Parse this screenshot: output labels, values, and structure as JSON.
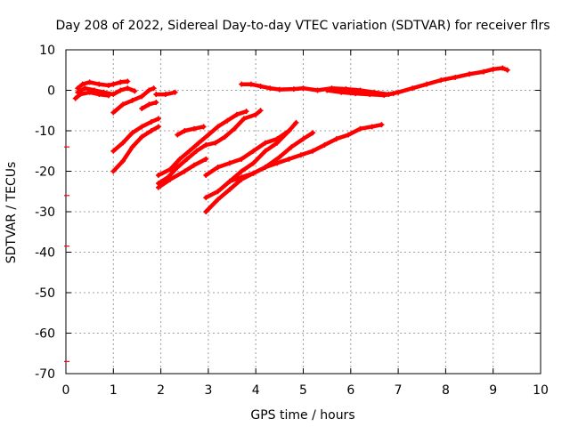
{
  "chart_data": {
    "type": "scatter",
    "title": "Day 208 of 2022, Sidereal Day-to-day VTEC variation (SDTVAR) for receiver flrs",
    "xlabel": "GPS time / hours",
    "ylabel": "SDTVAR / TECUs",
    "xlim": [
      0,
      10
    ],
    "ylim": [
      -70,
      10
    ],
    "x_ticks": [
      0,
      1,
      2,
      3,
      4,
      5,
      6,
      7,
      8,
      9,
      10
    ],
    "y_ticks": [
      10,
      0,
      -10,
      -20,
      -30,
      -40,
      -50,
      -60,
      -70
    ],
    "grid": true,
    "legend": "none",
    "series_color": "#ff0000",
    "axis_edge_marks_y": [
      -14,
      -26,
      -38.5,
      -67
    ],
    "series": [
      {
        "points": [
          [
            0.25,
            0.5
          ],
          [
            0.35,
            1.5
          ],
          [
            0.5,
            2
          ],
          [
            0.7,
            1.5
          ],
          [
            0.9,
            1.2
          ],
          [
            1.0,
            1.5
          ],
          [
            1.15,
            2
          ],
          [
            1.3,
            2.2
          ]
        ]
      },
      {
        "points": [
          [
            0.25,
            -0.5
          ],
          [
            0.4,
            0.5
          ],
          [
            0.6,
            0
          ],
          [
            0.8,
            -0.5
          ],
          [
            1.0,
            -1
          ],
          [
            1.15,
            0
          ],
          [
            1.3,
            0.5
          ],
          [
            1.45,
            -0.2
          ]
        ]
      },
      {
        "points": [
          [
            0.2,
            -2
          ],
          [
            0.3,
            -1
          ],
          [
            0.5,
            -0.5
          ],
          [
            0.7,
            -1
          ],
          [
            0.9,
            -1.3
          ]
        ]
      },
      {
        "points": [
          [
            1.0,
            -5.5
          ],
          [
            1.2,
            -3.5
          ],
          [
            1.4,
            -2.5
          ],
          [
            1.6,
            -1.5
          ],
          [
            1.75,
            0
          ],
          [
            1.85,
            0.5
          ]
        ]
      },
      {
        "points": [
          [
            1.6,
            -4.5
          ],
          [
            1.75,
            -3.5
          ],
          [
            1.9,
            -3
          ]
        ]
      },
      {
        "points": [
          [
            1.9,
            -1
          ],
          [
            2.1,
            -1
          ],
          [
            2.3,
            -0.5
          ]
        ]
      },
      {
        "points": [
          [
            1.0,
            -15
          ],
          [
            1.2,
            -13
          ],
          [
            1.4,
            -10.5
          ],
          [
            1.6,
            -9
          ],
          [
            1.8,
            -7.8
          ],
          [
            1.95,
            -7
          ]
        ]
      },
      {
        "points": [
          [
            1.0,
            -20
          ],
          [
            1.2,
            -17.5
          ],
          [
            1.4,
            -14
          ],
          [
            1.6,
            -11.5
          ],
          [
            1.8,
            -10
          ],
          [
            1.95,
            -9
          ]
        ]
      },
      {
        "points": [
          [
            2.35,
            -11
          ],
          [
            2.5,
            -10
          ],
          [
            2.7,
            -9.5
          ],
          [
            2.9,
            -9
          ]
        ]
      },
      {
        "points": [
          [
            1.95,
            -21
          ],
          [
            2.2,
            -19.5
          ],
          [
            2.4,
            -17
          ],
          [
            2.6,
            -15
          ],
          [
            2.8,
            -13
          ],
          [
            3.0,
            -11
          ],
          [
            3.2,
            -9
          ],
          [
            3.4,
            -7.5
          ],
          [
            3.6,
            -6
          ],
          [
            3.8,
            -5.2
          ]
        ]
      },
      {
        "points": [
          [
            1.95,
            -23
          ],
          [
            2.15,
            -21.5
          ],
          [
            2.35,
            -19
          ],
          [
            2.55,
            -17
          ],
          [
            2.75,
            -15
          ],
          [
            2.95,
            -13.5
          ],
          [
            3.15,
            -13
          ],
          [
            3.35,
            -11.5
          ],
          [
            3.55,
            -9.5
          ],
          [
            3.75,
            -7
          ],
          [
            4.0,
            -6
          ],
          [
            4.1,
            -5
          ]
        ]
      },
      {
        "points": [
          [
            1.95,
            -24
          ],
          [
            2.2,
            -22
          ],
          [
            2.5,
            -20
          ],
          [
            2.7,
            -18.5
          ],
          [
            2.95,
            -17
          ]
        ]
      },
      {
        "points": [
          [
            2.95,
            -26.5
          ],
          [
            3.2,
            -25
          ],
          [
            3.45,
            -22.5
          ],
          [
            3.7,
            -20
          ],
          [
            3.95,
            -18
          ],
          [
            4.2,
            -15
          ],
          [
            4.45,
            -13
          ],
          [
            4.7,
            -10
          ],
          [
            4.85,
            -8
          ]
        ]
      },
      {
        "points": [
          [
            2.95,
            -30
          ],
          [
            3.2,
            -27
          ],
          [
            3.45,
            -24.5
          ],
          [
            3.7,
            -22
          ],
          [
            3.95,
            -20.5
          ],
          [
            4.2,
            -19
          ],
          [
            4.5,
            -16.5
          ],
          [
            4.75,
            -14
          ],
          [
            5.0,
            -12
          ],
          [
            5.2,
            -10.5
          ]
        ]
      },
      {
        "points": [
          [
            2.95,
            -21
          ],
          [
            3.2,
            -19
          ],
          [
            3.45,
            -18
          ],
          [
            3.7,
            -17
          ],
          [
            3.95,
            -15
          ],
          [
            4.2,
            -13
          ],
          [
            4.45,
            -12
          ],
          [
            4.7,
            -10
          ]
        ]
      },
      {
        "points": [
          [
            3.45,
            -22.5
          ],
          [
            3.7,
            -21.5
          ],
          [
            3.95,
            -20.5
          ],
          [
            4.2,
            -19
          ],
          [
            4.45,
            -18
          ],
          [
            4.7,
            -17
          ],
          [
            4.95,
            -16
          ],
          [
            5.2,
            -15
          ],
          [
            5.45,
            -13.5
          ],
          [
            5.7,
            -12
          ],
          [
            5.95,
            -11
          ],
          [
            6.2,
            -9.5
          ],
          [
            6.45,
            -9
          ],
          [
            6.65,
            -8.5
          ]
        ]
      },
      {
        "points": [
          [
            3.7,
            1.5
          ],
          [
            3.9,
            1.5
          ],
          [
            4.1,
            1
          ],
          [
            4.3,
            0.5
          ],
          [
            4.5,
            0.2
          ],
          [
            4.8,
            0.3
          ],
          [
            5.0,
            0.5
          ],
          [
            5.3,
            0
          ],
          [
            5.6,
            0.5
          ],
          [
            5.9,
            0.3
          ],
          [
            6.2,
            0
          ],
          [
            6.5,
            -0.5
          ],
          [
            6.8,
            -1
          ],
          [
            7.0,
            -0.5
          ],
          [
            7.3,
            0.5
          ],
          [
            7.6,
            1.5
          ],
          [
            7.9,
            2.5
          ],
          [
            8.2,
            3.2
          ],
          [
            8.5,
            4
          ],
          [
            8.8,
            4.6
          ],
          [
            9.0,
            5.2
          ],
          [
            9.2,
            5.5
          ],
          [
            9.3,
            5
          ]
        ]
      },
      {
        "points": [
          [
            5.5,
            0
          ],
          [
            5.8,
            -0.5
          ],
          [
            6.1,
            -0.8
          ],
          [
            6.4,
            -1
          ],
          [
            6.7,
            -1.2
          ],
          [
            6.9,
            -0.8
          ]
        ]
      }
    ]
  }
}
